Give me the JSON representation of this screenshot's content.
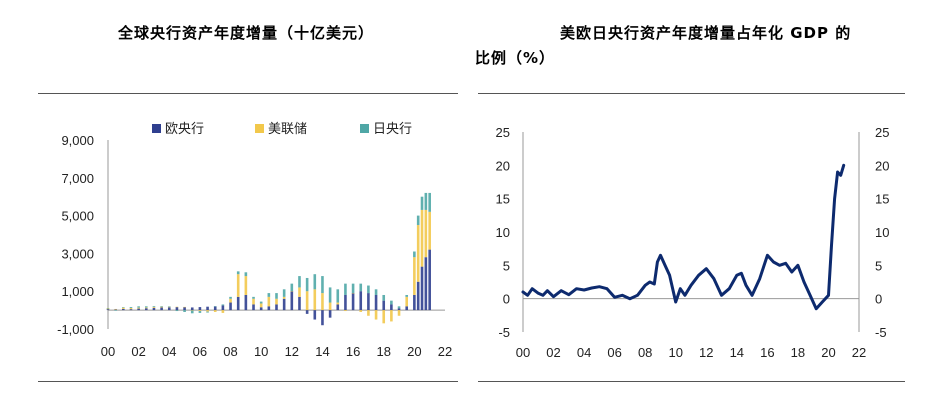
{
  "charts": {
    "left": {
      "title": "全球央行资产年度增量（十亿美元）",
      "legend": [
        {
          "label": "欧央行",
          "color": "#2f3f8f"
        },
        {
          "label": "美联储",
          "color": "#f2c84b"
        },
        {
          "label": "日央行",
          "color": "#4fa7a6"
        }
      ],
      "y_ticks": [
        "9,000",
        "7,000",
        "5,000",
        "3,000",
        "1,000",
        "-1,000"
      ],
      "x_ticks": [
        "00",
        "02",
        "04",
        "06",
        "08",
        "10",
        "12",
        "14",
        "16",
        "18",
        "20",
        "22"
      ]
    },
    "right": {
      "title_line1": "美欧日央行资产年度增量占年化 GDP 的",
      "title_line2": "比例（%）",
      "y_ticks": [
        "25",
        "20",
        "15",
        "10",
        "5",
        "0",
        "-5"
      ],
      "x_ticks": [
        "00",
        "02",
        "04",
        "06",
        "08",
        "10",
        "12",
        "14",
        "16",
        "18",
        "20",
        "22"
      ],
      "line_color": "#0d2a6e"
    }
  },
  "chart_data": [
    {
      "type": "bar",
      "stacked": true,
      "title": "全球央行资产年度增量（十亿美元）",
      "ylim": [
        -1000,
        9000
      ],
      "xlim": [
        2000,
        2022
      ],
      "x": [
        2000.0,
        2000.5,
        2001.0,
        2001.5,
        2002.0,
        2002.5,
        2003.0,
        2003.5,
        2004.0,
        2004.5,
        2005.0,
        2005.5,
        2006.0,
        2006.5,
        2007.0,
        2007.5,
        2008.0,
        2008.5,
        2009.0,
        2009.5,
        2010.0,
        2010.5,
        2011.0,
        2011.5,
        2012.0,
        2012.5,
        2013.0,
        2013.5,
        2014.0,
        2014.5,
        2015.0,
        2015.5,
        2016.0,
        2016.5,
        2017.0,
        2017.5,
        2018.0,
        2018.5,
        2019.0,
        2019.5,
        2020.0,
        2020.25,
        2020.5,
        2020.75,
        2021.0
      ],
      "series": [
        {
          "name": "欧央行",
          "values": [
            50,
            30,
            60,
            50,
            80,
            100,
            120,
            140,
            150,
            160,
            160,
            140,
            160,
            180,
            200,
            250,
            400,
            700,
            800,
            300,
            150,
            200,
            300,
            600,
            1000,
            700,
            -200,
            -500,
            -800,
            -400,
            300,
            800,
            900,
            1000,
            900,
            800,
            500,
            300,
            100,
            200,
            800,
            1500,
            2300,
            2800,
            3200
          ]
        },
        {
          "name": "美联储",
          "values": [
            40,
            30,
            70,
            60,
            50,
            40,
            50,
            40,
            30,
            20,
            10,
            -20,
            -50,
            -80,
            -100,
            -150,
            200,
            1200,
            1000,
            300,
            200,
            500,
            300,
            100,
            0,
            500,
            1000,
            1100,
            900,
            400,
            100,
            -50,
            0,
            -100,
            -300,
            -500,
            -700,
            -600,
            -300,
            500,
            2000,
            3000,
            3000,
            2500,
            2000
          ]
        },
        {
          "name": "日央行",
          "values": [
            20,
            -30,
            30,
            50,
            70,
            60,
            40,
            30,
            20,
            -50,
            -100,
            -150,
            -100,
            -50,
            0,
            50,
            100,
            150,
            200,
            100,
            100,
            200,
            300,
            400,
            400,
            600,
            700,
            800,
            900,
            800,
            700,
            600,
            500,
            400,
            400,
            300,
            300,
            200,
            100,
            100,
            300,
            500,
            700,
            900,
            1000
          ]
        }
      ]
    },
    {
      "type": "line",
      "title": "美欧日央行资产年度增量占年化 GDP 的比例（%）",
      "ylim": [
        -5,
        25
      ],
      "xlim": [
        2000,
        2022
      ],
      "x": [
        2000.0,
        2000.3,
        2000.6,
        2001.0,
        2001.3,
        2001.6,
        2002.0,
        2002.5,
        2003.0,
        2003.5,
        2004.0,
        2004.5,
        2005.0,
        2005.5,
        2006.0,
        2006.5,
        2007.0,
        2007.5,
        2008.0,
        2008.3,
        2008.6,
        2008.8,
        2009.0,
        2009.3,
        2009.6,
        2010.0,
        2010.3,
        2010.6,
        2011.0,
        2011.5,
        2012.0,
        2012.5,
        2013.0,
        2013.5,
        2014.0,
        2014.3,
        2014.6,
        2015.0,
        2015.5,
        2016.0,
        2016.4,
        2016.8,
        2017.2,
        2017.6,
        2018.0,
        2018.4,
        2018.8,
        2019.2,
        2019.6,
        2020.0,
        2020.2,
        2020.4,
        2020.6,
        2020.8,
        2021.0
      ],
      "series": [
        {
          "name": "",
          "values": [
            1.0,
            0.5,
            1.5,
            0.8,
            0.5,
            1.2,
            0.3,
            1.2,
            0.6,
            1.5,
            1.3,
            1.6,
            1.8,
            1.5,
            0.2,
            0.5,
            0.0,
            0.5,
            2.0,
            2.5,
            2.2,
            5.5,
            6.5,
            5.0,
            3.5,
            -0.5,
            1.5,
            0.5,
            2.0,
            3.5,
            4.5,
            3.0,
            0.5,
            1.5,
            3.5,
            3.8,
            2.0,
            0.5,
            3.0,
            6.5,
            5.5,
            5.0,
            5.3,
            4.0,
            5.0,
            2.5,
            0.5,
            -1.5,
            -0.5,
            0.5,
            8.0,
            15.0,
            19.0,
            18.5,
            20.0
          ]
        }
      ]
    }
  ]
}
